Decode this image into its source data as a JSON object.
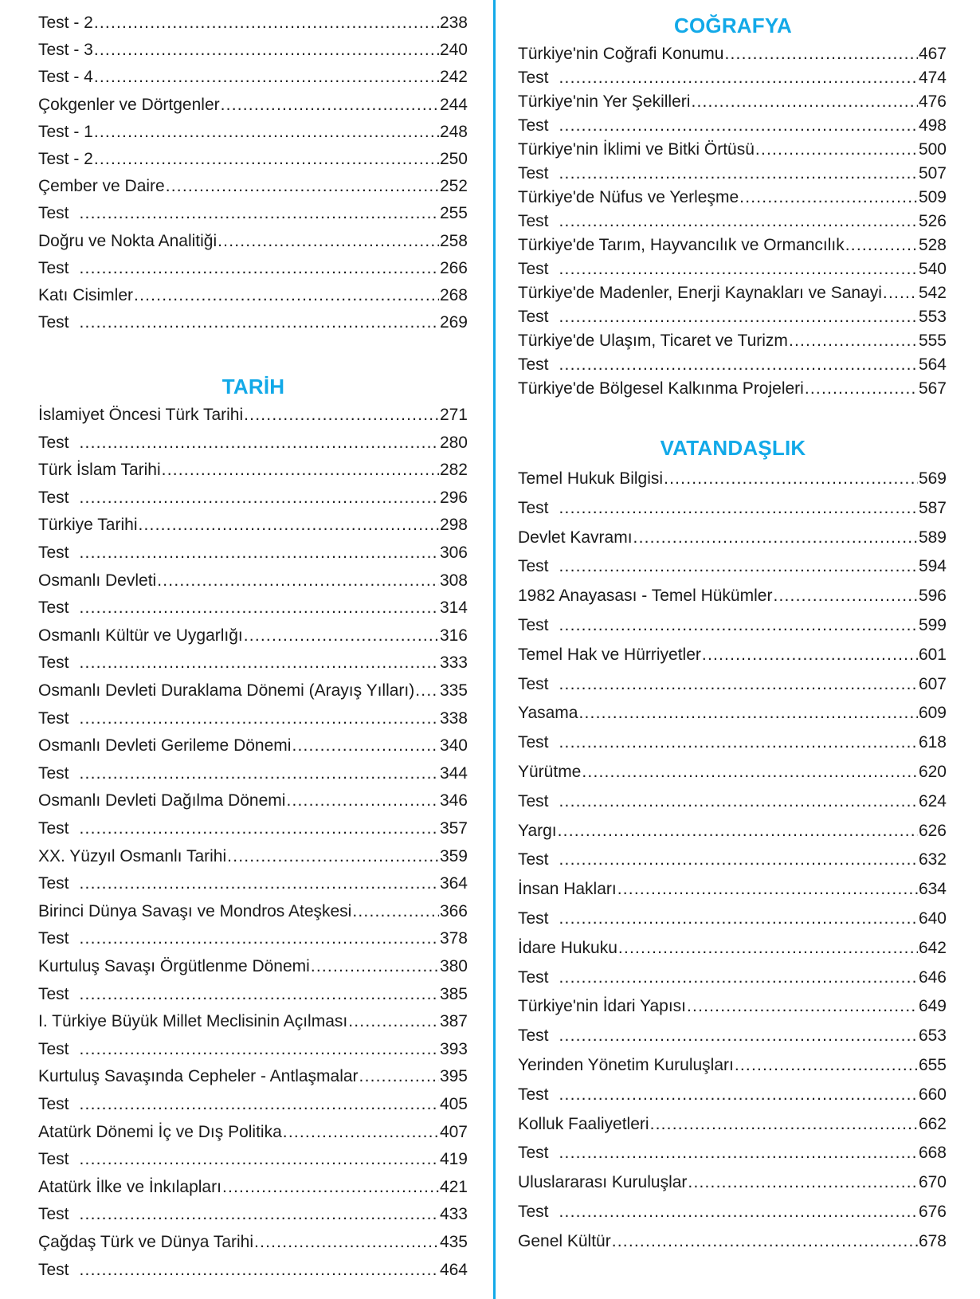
{
  "accent_color": "#12a9e8",
  "left_top": {
    "entries": [
      {
        "title": "Test - 2",
        "page": "238"
      },
      {
        "title": "Test - 3",
        "page": "240"
      },
      {
        "title": "Test - 4",
        "page": "242"
      },
      {
        "title": "Çokgenler ve Dörtgenler",
        "page": "244"
      },
      {
        "title": "Test - 1",
        "page": "248"
      },
      {
        "title": "Test - 2",
        "page": "250"
      },
      {
        "title": "Çember ve Daire",
        "page": "252"
      },
      {
        "title": "Test",
        "page": "255"
      },
      {
        "title": "Doğru ve Nokta Analitiği",
        "page": "258"
      },
      {
        "title": "Test",
        "page": "266"
      },
      {
        "title": "Katı Cisimler",
        "page": "268"
      },
      {
        "title": "Test",
        "page": "269"
      }
    ]
  },
  "tarih": {
    "heading": "TARİH",
    "entries": [
      {
        "title": "İslamiyet Öncesi Türk Tarihi",
        "page": "271"
      },
      {
        "title": "Test",
        "page": "280"
      },
      {
        "title": "Türk İslam Tarihi",
        "page": "282"
      },
      {
        "title": "Test",
        "page": "296"
      },
      {
        "title": "Türkiye Tarihi",
        "page": "298"
      },
      {
        "title": "Test",
        "page": "306"
      },
      {
        "title": "Osmanlı Devleti",
        "page": "308"
      },
      {
        "title": "Test",
        "page": "314"
      },
      {
        "title": "Osmanlı Kültür ve Uygarlığı",
        "page": "316"
      },
      {
        "title": "Test",
        "page": "333"
      },
      {
        "title": "Osmanlı Devleti Duraklama Dönemi (Arayış Yılları)",
        "page": "335"
      },
      {
        "title": "Test",
        "page": "338"
      },
      {
        "title": "Osmanlı Devleti Gerileme Dönemi",
        "page": "340"
      },
      {
        "title": "Test",
        "page": "344"
      },
      {
        "title": "Osmanlı Devleti Dağılma Dönemi",
        "page": "346"
      },
      {
        "title": "Test",
        "page": "357"
      },
      {
        "title": "XX. Yüzyıl Osmanlı Tarihi",
        "page": "359"
      },
      {
        "title": "Test",
        "page": "364"
      },
      {
        "title": "Birinci Dünya Savaşı ve Mondros Ateşkesi",
        "page": "366"
      },
      {
        "title": "Test",
        "page": "378"
      },
      {
        "title": "Kurtuluş Savaşı Örgütlenme Dönemi",
        "page": "380"
      },
      {
        "title": "Test",
        "page": "385"
      },
      {
        "title": "I. Türkiye Büyük Millet Meclisinin Açılması",
        "page": "387"
      },
      {
        "title": "Test",
        "page": "393"
      },
      {
        "title": "Kurtuluş Savaşında Cepheler - Antlaşmalar",
        "page": "395"
      },
      {
        "title": "Test",
        "page": "405"
      },
      {
        "title": "Atatürk Dönemi İç ve Dış Politika",
        "page": "407"
      },
      {
        "title": "Test",
        "page": "419"
      },
      {
        "title": "Atatürk İlke ve İnkılapları",
        "page": "421"
      },
      {
        "title": "Test",
        "page": "433"
      },
      {
        "title": "Çağdaş Türk ve Dünya Tarihi",
        "page": "435"
      },
      {
        "title": "Test",
        "page": "464"
      }
    ]
  },
  "cografya": {
    "heading": "COĞRAFYA",
    "entries": [
      {
        "title": "Türkiye'nin Coğrafi Konumu",
        "page": "467"
      },
      {
        "title": "Test",
        "page": "474"
      },
      {
        "title": "Türkiye'nin Yer Şekilleri",
        "page": "476"
      },
      {
        "title": "Test",
        "page": "498"
      },
      {
        "title": "Türkiye'nin İklimi ve Bitki Örtüsü",
        "page": "500"
      },
      {
        "title": "Test",
        "page": "507"
      },
      {
        "title": "Türkiye'de Nüfus ve Yerleşme",
        "page": "509"
      },
      {
        "title": "Test",
        "page": "526"
      },
      {
        "title": "Türkiye'de Tarım, Hayvancılık ve Ormancılık",
        "page": "528"
      },
      {
        "title": "Test",
        "page": "540"
      },
      {
        "title": "Türkiye'de Madenler, Enerji Kaynakları ve Sanayi",
        "page": "542"
      },
      {
        "title": "Test",
        "page": "553"
      },
      {
        "title": "Türkiye'de Ulaşım, Ticaret ve Turizm",
        "page": "555"
      },
      {
        "title": "Test",
        "page": "564"
      },
      {
        "title": "Türkiye'de Bölgesel Kalkınma Projeleri",
        "page": "567"
      }
    ]
  },
  "vatandaslik": {
    "heading": "VATANDAŞLIK",
    "entries": [
      {
        "title": "Temel Hukuk Bilgisi",
        "page": "569"
      },
      {
        "title": "Test",
        "page": "587"
      },
      {
        "title": "Devlet Kavramı",
        "page": "589"
      },
      {
        "title": "Test",
        "page": "594"
      },
      {
        "title": "1982 Anayasası - Temel Hükümler",
        "page": "596"
      },
      {
        "title": "Test",
        "page": "599"
      },
      {
        "title": "Temel Hak ve Hürriyetler",
        "page": "601"
      },
      {
        "title": "Test",
        "page": "607"
      },
      {
        "title": "Yasama",
        "page": "609"
      },
      {
        "title": "Test",
        "page": "618"
      },
      {
        "title": "Yürütme",
        "page": "620"
      },
      {
        "title": "Test",
        "page": "624"
      },
      {
        "title": "Yargı",
        "page": "626"
      },
      {
        "title": "Test",
        "page": "632"
      },
      {
        "title": "İnsan Hakları",
        "page": "634"
      },
      {
        "title": "Test",
        "page": "640"
      },
      {
        "title": "İdare Hukuku",
        "page": "642"
      },
      {
        "title": "Test",
        "page": "646"
      },
      {
        "title": "Türkiye'nin İdari Yapısı",
        "page": "649"
      },
      {
        "title": "Test",
        "page": "653"
      },
      {
        "title": "Yerinden Yönetim Kuruluşları",
        "page": "655"
      },
      {
        "title": "Test",
        "page": "660"
      },
      {
        "title": "Kolluk Faaliyetleri",
        "page": "662"
      },
      {
        "title": "Test",
        "page": "668"
      },
      {
        "title": "Uluslararası Kuruluşlar",
        "page": "670"
      },
      {
        "title": "Test",
        "page": "676"
      },
      {
        "title": "Genel Kültür",
        "page": "678"
      }
    ]
  }
}
